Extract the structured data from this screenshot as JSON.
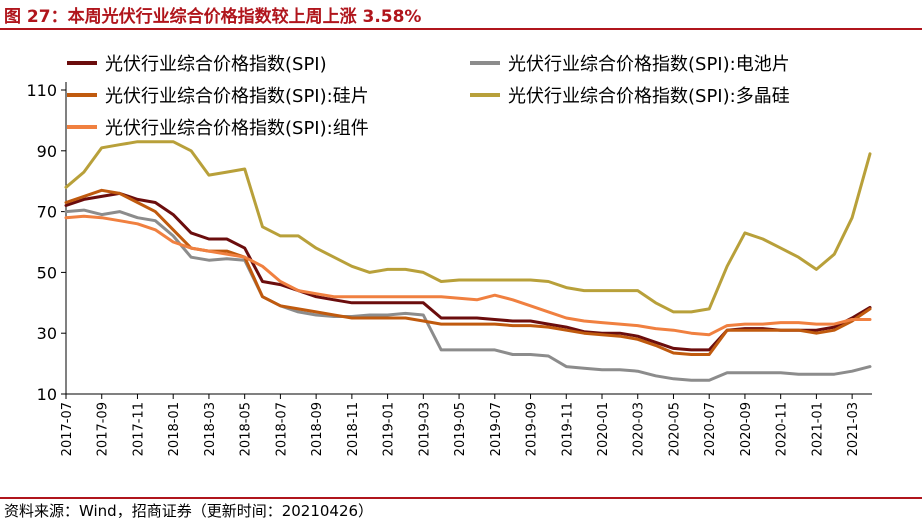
{
  "figure": {
    "title": "图 27：本周光伏行业综合价格指数较上周上涨 3.58%",
    "source": "资料来源：Wind，招商证券（更新时间：20210426）"
  },
  "chart_data": {
    "type": "line",
    "title": "",
    "xlabel": "",
    "ylabel": "",
    "ylim": [
      10,
      110
    ],
    "yticks": [
      10,
      30,
      50,
      70,
      90,
      110
    ],
    "x_start": "2017-07",
    "x_end": "2021-04",
    "x_ticks": [
      "2017-07",
      "2017-09",
      "2017-11",
      "2018-01",
      "2018-03",
      "2018-05",
      "2018-07",
      "2018-09",
      "2018-11",
      "2019-01",
      "2019-03",
      "2019-05",
      "2019-07",
      "2019-09",
      "2019-11",
      "2020-01",
      "2020-03",
      "2020-05",
      "2020-07",
      "2020-09",
      "2020-11",
      "2021-01",
      "2021-03"
    ],
    "grid": false,
    "legend_position": "top",
    "series": [
      {
        "name": "光伏行业综合价格指数(SPI)",
        "color": "#6b0d0d",
        "points": [
          [
            "2017-07",
            72
          ],
          [
            "2017-08",
            74
          ],
          [
            "2017-09",
            75
          ],
          [
            "2017-10",
            76
          ],
          [
            "2017-11",
            74
          ],
          [
            "2017-12",
            73
          ],
          [
            "2018-01",
            69
          ],
          [
            "2018-02",
            63
          ],
          [
            "2018-03",
            61
          ],
          [
            "2018-04",
            61
          ],
          [
            "2018-05",
            58
          ],
          [
            "2018-06",
            47
          ],
          [
            "2018-07",
            46
          ],
          [
            "2018-08",
            44
          ],
          [
            "2018-09",
            42
          ],
          [
            "2018-10",
            41
          ],
          [
            "2018-11",
            40
          ],
          [
            "2018-12",
            40
          ],
          [
            "2019-01",
            40
          ],
          [
            "2019-02",
            40
          ],
          [
            "2019-03",
            40
          ],
          [
            "2019-04",
            35
          ],
          [
            "2019-05",
            35
          ],
          [
            "2019-06",
            35
          ],
          [
            "2019-07",
            34.5
          ],
          [
            "2019-08",
            34
          ],
          [
            "2019-09",
            34
          ],
          [
            "2019-10",
            33
          ],
          [
            "2019-11",
            32
          ],
          [
            "2019-12",
            30.5
          ],
          [
            "2020-01",
            30
          ],
          [
            "2020-02",
            30
          ],
          [
            "2020-03",
            29
          ],
          [
            "2020-04",
            27
          ],
          [
            "2020-05",
            25
          ],
          [
            "2020-06",
            24.5
          ],
          [
            "2020-07",
            24.5
          ],
          [
            "2020-08",
            31
          ],
          [
            "2020-09",
            31.5
          ],
          [
            "2020-10",
            31.5
          ],
          [
            "2020-11",
            31
          ],
          [
            "2020-12",
            31
          ],
          [
            "2021-01",
            31
          ],
          [
            "2021-02",
            32
          ],
          [
            "2021-03",
            35
          ],
          [
            "2021-04",
            38.5
          ]
        ]
      },
      {
        "name": "光伏行业综合价格指数(SPI):电池片",
        "color": "#8c8c8c",
        "points": [
          [
            "2017-07",
            70
          ],
          [
            "2017-08",
            70.5
          ],
          [
            "2017-09",
            69
          ],
          [
            "2017-10",
            70
          ],
          [
            "2017-11",
            68
          ],
          [
            "2017-12",
            67
          ],
          [
            "2018-01",
            62
          ],
          [
            "2018-02",
            55
          ],
          [
            "2018-03",
            54
          ],
          [
            "2018-04",
            54.5
          ],
          [
            "2018-05",
            54
          ],
          [
            "2018-06",
            42
          ],
          [
            "2018-07",
            39
          ],
          [
            "2018-08",
            37
          ],
          [
            "2018-09",
            36
          ],
          [
            "2018-10",
            35.5
          ],
          [
            "2018-11",
            35.5
          ],
          [
            "2018-12",
            36
          ],
          [
            "2019-01",
            36
          ],
          [
            "2019-02",
            36.5
          ],
          [
            "2019-03",
            36
          ],
          [
            "2019-04",
            24.5
          ],
          [
            "2019-05",
            24.5
          ],
          [
            "2019-06",
            24.5
          ],
          [
            "2019-07",
            24.5
          ],
          [
            "2019-08",
            23
          ],
          [
            "2019-09",
            23
          ],
          [
            "2019-10",
            22.5
          ],
          [
            "2019-11",
            19
          ],
          [
            "2019-12",
            18.5
          ],
          [
            "2020-01",
            18
          ],
          [
            "2020-02",
            18
          ],
          [
            "2020-03",
            17.5
          ],
          [
            "2020-04",
            16
          ],
          [
            "2020-05",
            15
          ],
          [
            "2020-06",
            14.5
          ],
          [
            "2020-07",
            14.5
          ],
          [
            "2020-08",
            17
          ],
          [
            "2020-09",
            17
          ],
          [
            "2020-10",
            17
          ],
          [
            "2020-11",
            17
          ],
          [
            "2020-12",
            16.5
          ],
          [
            "2021-01",
            16.5
          ],
          [
            "2021-02",
            16.5
          ],
          [
            "2021-03",
            17.5
          ],
          [
            "2021-04",
            19
          ]
        ]
      },
      {
        "name": "光伏行业综合价格指数(SPI):硅片",
        "color": "#c05a0e",
        "points": [
          [
            "2017-07",
            73
          ],
          [
            "2017-08",
            75
          ],
          [
            "2017-09",
            77
          ],
          [
            "2017-10",
            76
          ],
          [
            "2017-11",
            73
          ],
          [
            "2017-12",
            70
          ],
          [
            "2018-01",
            64
          ],
          [
            "2018-02",
            58
          ],
          [
            "2018-03",
            57
          ],
          [
            "2018-04",
            57
          ],
          [
            "2018-05",
            55
          ],
          [
            "2018-06",
            42
          ],
          [
            "2018-07",
            39
          ],
          [
            "2018-08",
            38
          ],
          [
            "2018-09",
            37
          ],
          [
            "2018-10",
            36
          ],
          [
            "2018-11",
            35
          ],
          [
            "2018-12",
            35
          ],
          [
            "2019-01",
            35
          ],
          [
            "2019-02",
            35
          ],
          [
            "2019-03",
            34
          ],
          [
            "2019-04",
            33
          ],
          [
            "2019-05",
            33
          ],
          [
            "2019-06",
            33
          ],
          [
            "2019-07",
            33
          ],
          [
            "2019-08",
            32.5
          ],
          [
            "2019-09",
            32.5
          ],
          [
            "2019-10",
            32
          ],
          [
            "2019-11",
            31
          ],
          [
            "2019-12",
            30
          ],
          [
            "2020-01",
            29.5
          ],
          [
            "2020-02",
            29
          ],
          [
            "2020-03",
            28
          ],
          [
            "2020-04",
            26
          ],
          [
            "2020-05",
            23.5
          ],
          [
            "2020-06",
            23
          ],
          [
            "2020-07",
            23
          ],
          [
            "2020-08",
            31
          ],
          [
            "2020-09",
            31
          ],
          [
            "2020-10",
            31
          ],
          [
            "2020-11",
            31
          ],
          [
            "2020-12",
            31
          ],
          [
            "2021-01",
            30
          ],
          [
            "2021-02",
            31
          ],
          [
            "2021-03",
            34
          ],
          [
            "2021-04",
            38
          ]
        ]
      },
      {
        "name": "光伏行业综合价格指数(SPI):多晶硅",
        "color": "#b8a03a",
        "points": [
          [
            "2017-07",
            78
          ],
          [
            "2017-08",
            83
          ],
          [
            "2017-09",
            91
          ],
          [
            "2017-10",
            92
          ],
          [
            "2017-11",
            93
          ],
          [
            "2017-12",
            93
          ],
          [
            "2018-01",
            93
          ],
          [
            "2018-02",
            90
          ],
          [
            "2018-03",
            82
          ],
          [
            "2018-04",
            83
          ],
          [
            "2018-05",
            84
          ],
          [
            "2018-06",
            65
          ],
          [
            "2018-07",
            62
          ],
          [
            "2018-08",
            62
          ],
          [
            "2018-09",
            58
          ],
          [
            "2018-10",
            55
          ],
          [
            "2018-11",
            52
          ],
          [
            "2018-12",
            50
          ],
          [
            "2019-01",
            51
          ],
          [
            "2019-02",
            51
          ],
          [
            "2019-03",
            50
          ],
          [
            "2019-04",
            47
          ],
          [
            "2019-05",
            47.5
          ],
          [
            "2019-06",
            47.5
          ],
          [
            "2019-07",
            47.5
          ],
          [
            "2019-08",
            47.5
          ],
          [
            "2019-09",
            47.5
          ],
          [
            "2019-10",
            47
          ],
          [
            "2019-11",
            45
          ],
          [
            "2019-12",
            44
          ],
          [
            "2020-01",
            44
          ],
          [
            "2020-02",
            44
          ],
          [
            "2020-03",
            44
          ],
          [
            "2020-04",
            40
          ],
          [
            "2020-05",
            37
          ],
          [
            "2020-06",
            37
          ],
          [
            "2020-07",
            38
          ],
          [
            "2020-08",
            52
          ],
          [
            "2020-09",
            63
          ],
          [
            "2020-10",
            61
          ],
          [
            "2020-11",
            58
          ],
          [
            "2020-12",
            55
          ],
          [
            "2021-01",
            51
          ],
          [
            "2021-02",
            56
          ],
          [
            "2021-03",
            68
          ],
          [
            "2021-04",
            89
          ]
        ]
      },
      {
        "name": "光伏行业综合价格指数(SPI):组件",
        "color": "#f08040",
        "points": [
          [
            "2017-07",
            68
          ],
          [
            "2017-08",
            68.5
          ],
          [
            "2017-09",
            68
          ],
          [
            "2017-10",
            67
          ],
          [
            "2017-11",
            66
          ],
          [
            "2017-12",
            64
          ],
          [
            "2018-01",
            60
          ],
          [
            "2018-02",
            58
          ],
          [
            "2018-03",
            57
          ],
          [
            "2018-04",
            56
          ],
          [
            "2018-05",
            55
          ],
          [
            "2018-06",
            52
          ],
          [
            "2018-07",
            47
          ],
          [
            "2018-08",
            44
          ],
          [
            "2018-09",
            43
          ],
          [
            "2018-10",
            42
          ],
          [
            "2018-11",
            42
          ],
          [
            "2018-12",
            42
          ],
          [
            "2019-01",
            42
          ],
          [
            "2019-02",
            42
          ],
          [
            "2019-03",
            42
          ],
          [
            "2019-04",
            42
          ],
          [
            "2019-05",
            41.5
          ],
          [
            "2019-06",
            41
          ],
          [
            "2019-07",
            42.5
          ],
          [
            "2019-08",
            41
          ],
          [
            "2019-09",
            39
          ],
          [
            "2019-10",
            37
          ],
          [
            "2019-11",
            35
          ],
          [
            "2019-12",
            34
          ],
          [
            "2020-01",
            33.5
          ],
          [
            "2020-02",
            33
          ],
          [
            "2020-03",
            32.5
          ],
          [
            "2020-04",
            31.5
          ],
          [
            "2020-05",
            31
          ],
          [
            "2020-06",
            30
          ],
          [
            "2020-07",
            29.5
          ],
          [
            "2020-08",
            32.5
          ],
          [
            "2020-09",
            33
          ],
          [
            "2020-10",
            33
          ],
          [
            "2020-11",
            33.5
          ],
          [
            "2020-12",
            33.5
          ],
          [
            "2021-01",
            33
          ],
          [
            "2021-02",
            33
          ],
          [
            "2021-03",
            34.5
          ],
          [
            "2021-04",
            34.5
          ]
        ]
      }
    ]
  }
}
